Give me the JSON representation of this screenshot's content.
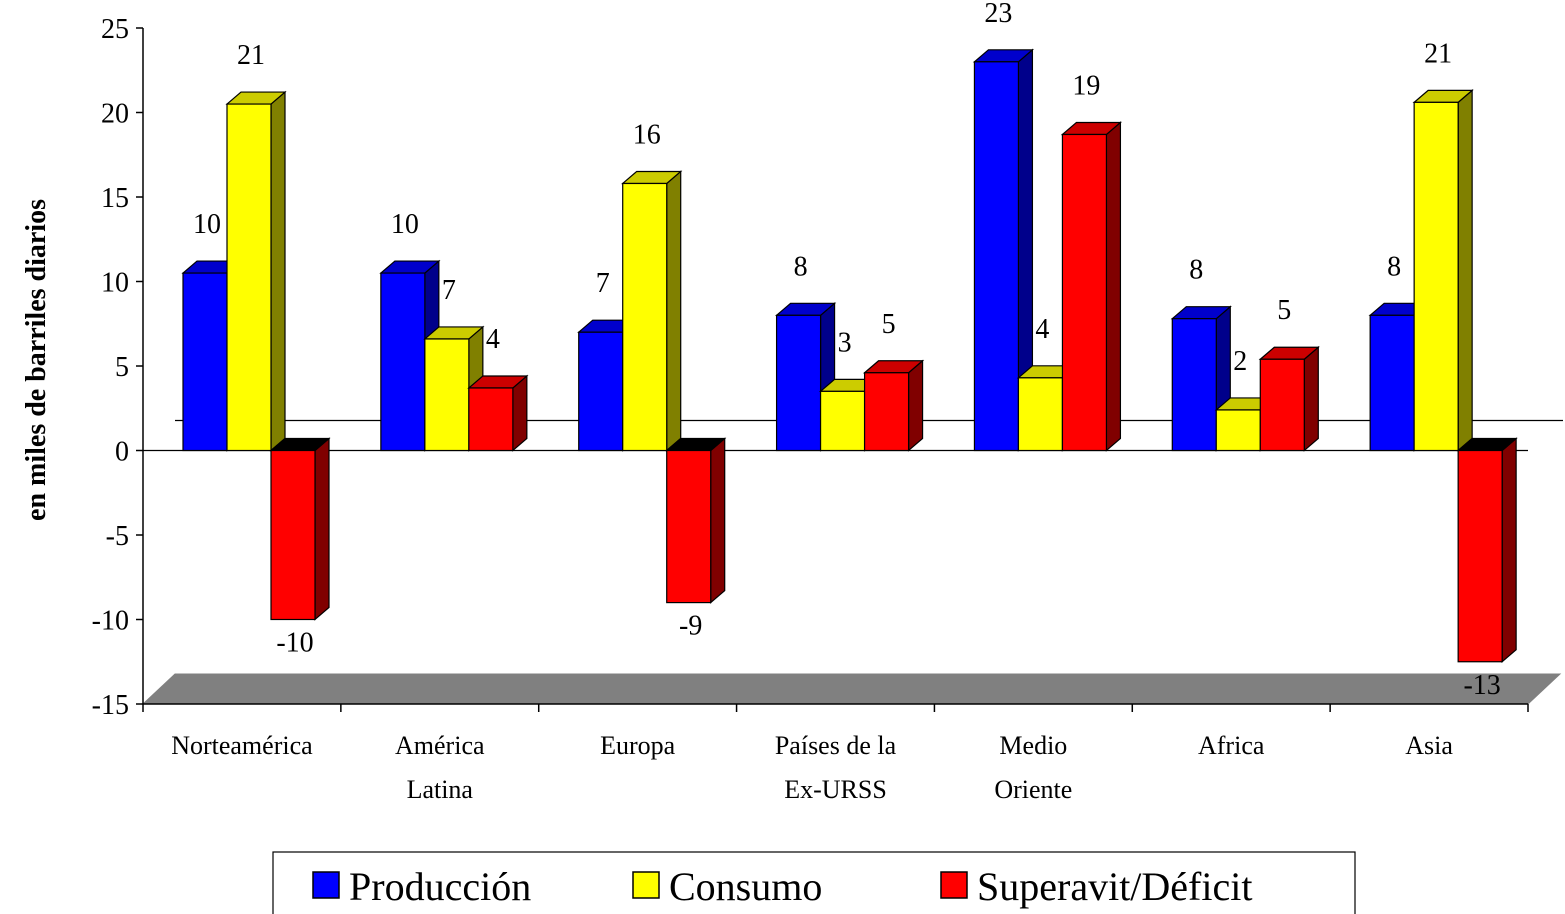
{
  "chart_data": {
    "type": "bar",
    "ylabel": "en miles de barriles diarios",
    "ylim": [
      -15,
      25
    ],
    "yticks": [
      25,
      20,
      15,
      10,
      5,
      0,
      -5,
      -10,
      -15
    ],
    "categories": [
      [
        "Norteamérica"
      ],
      [
        "América",
        "Latina"
      ],
      [
        "Europa"
      ],
      [
        "Países de la",
        "Ex-URSS"
      ],
      [
        "Medio",
        "Oriente"
      ],
      [
        "Africa"
      ],
      [
        "Asia"
      ]
    ],
    "series": [
      {
        "name": "Producción",
        "color": "#0000ff",
        "side": "#00008b",
        "top": "#0000cc",
        "values": [
          10.5,
          10.5,
          7,
          8,
          23,
          7.8,
          8
        ],
        "labels": [
          "10",
          "10",
          "7",
          "8",
          "23",
          "8",
          "8"
        ]
      },
      {
        "name": "Consumo",
        "color": "#ffff00",
        "side": "#808000",
        "top": "#cccc00",
        "values": [
          20.5,
          6.6,
          15.8,
          3.5,
          4.3,
          2.4,
          20.6
        ],
        "labels": [
          "21",
          "7",
          "16",
          "3",
          "4",
          "2",
          "21"
        ]
      },
      {
        "name": "Superavit/Déficit",
        "color": "#ff0000",
        "side": "#800000",
        "top": "#cc0000",
        "values": [
          -10,
          3.7,
          -9,
          4.6,
          18.7,
          5.4,
          -12.5
        ],
        "labels": [
          "-10",
          "4",
          "-9",
          "5",
          "19",
          "5",
          "-13"
        ]
      }
    ],
    "legend": "bottom",
    "view": "3d"
  }
}
